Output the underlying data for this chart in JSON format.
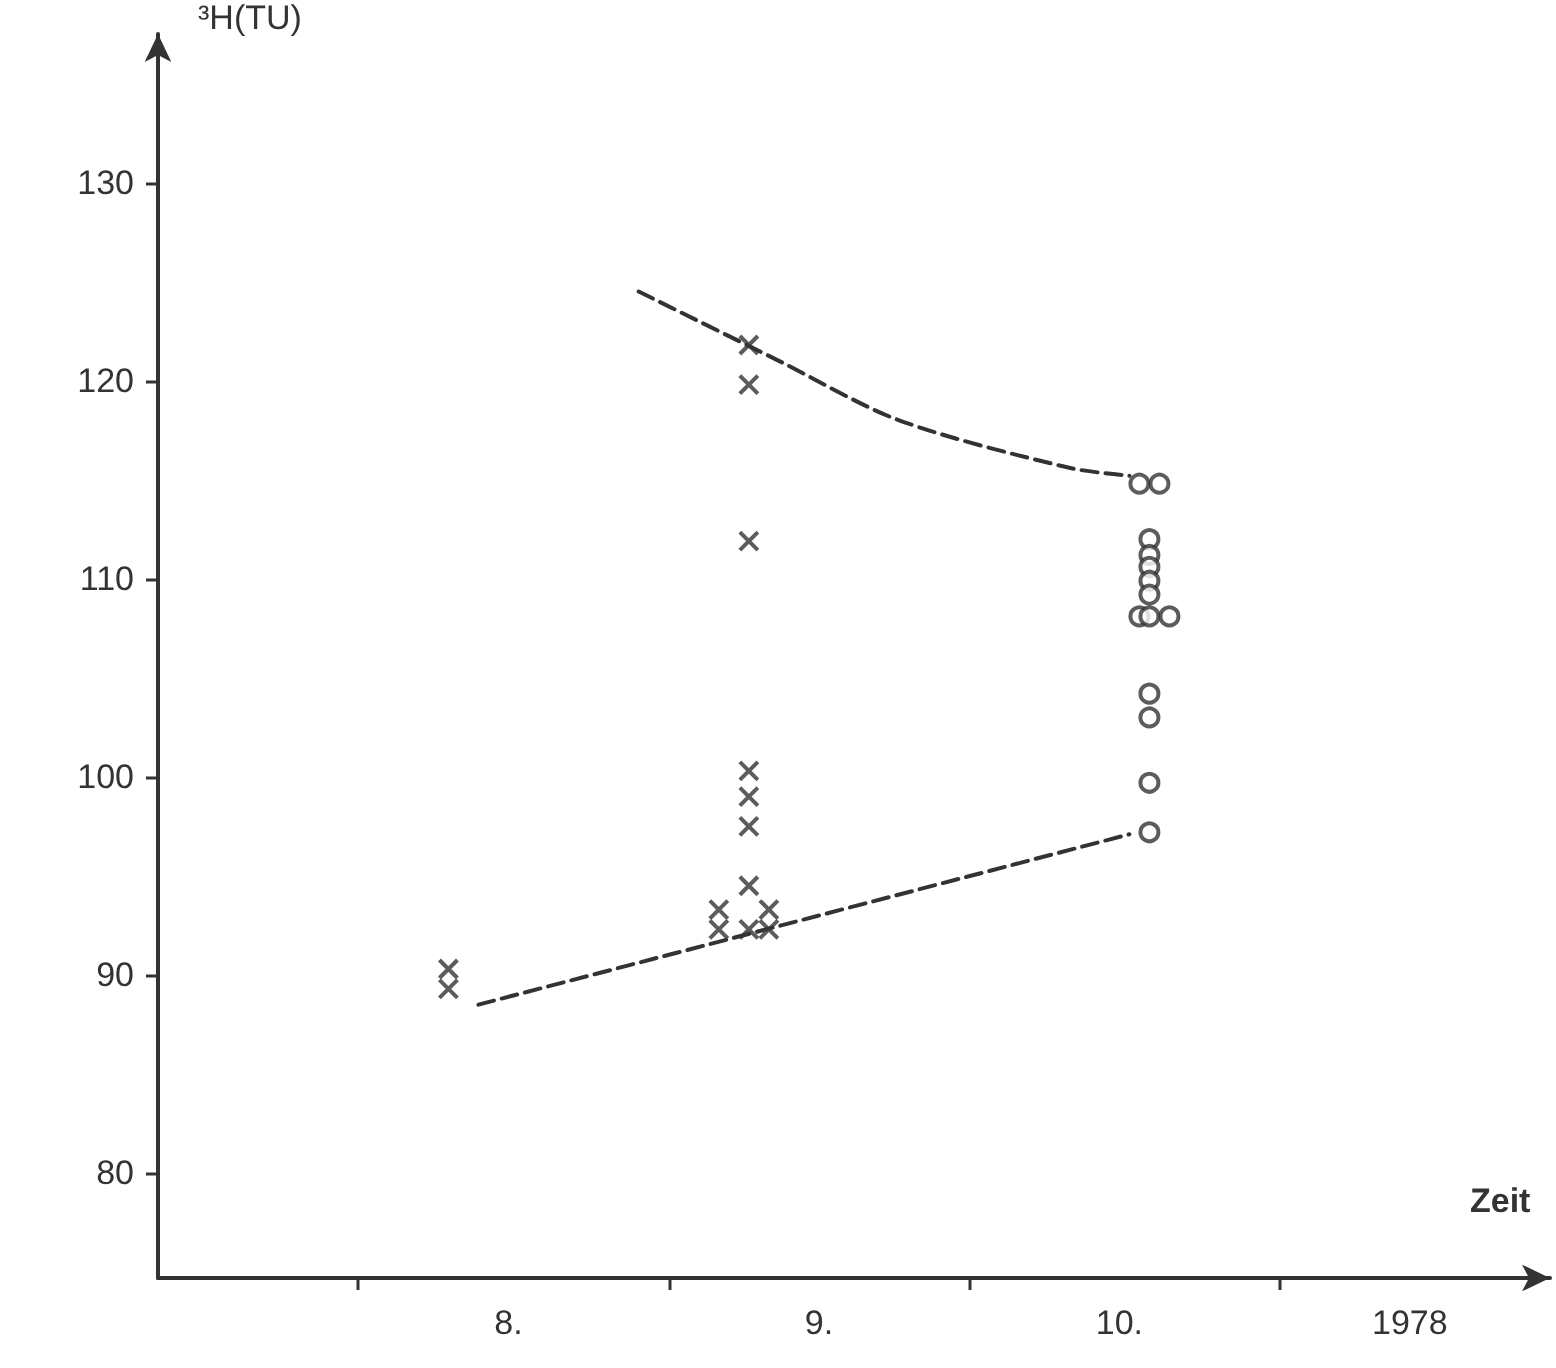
{
  "chart_data": {
    "type": "scatter",
    "xlabel": "Zeit",
    "ylabel": "³H(TU)",
    "xlim": [
      "1978-07-12",
      "1978-11-28"
    ],
    "ylim": [
      74.7,
      137.5
    ],
    "xticks": [
      {
        "value": "1978-08-01",
        "label": null
      },
      {
        "value": "1978-09-01",
        "label": null
      },
      {
        "value": "1978-10-01",
        "label": null
      },
      {
        "value": "1978-11-01",
        "label": null
      },
      {
        "value": "1978-08-16",
        "label": "8."
      },
      {
        "value": "1978-09-16",
        "label": "9."
      },
      {
        "value": "1978-10-16",
        "label": "10."
      },
      {
        "value": "1978-11-14",
        "label": "1978"
      }
    ],
    "yticks": [
      80,
      90,
      100,
      110,
      120,
      130
    ],
    "grid": false,
    "series": [
      {
        "marker": "cross",
        "color": "#333333",
        "x": [
          "1978-08-10",
          "1978-08-10",
          "1978-09-09",
          "1978-09-09",
          "1978-09-09",
          "1978-09-09",
          "1978-09-09",
          "1978-09-09",
          "1978-09-09",
          "1978-09-06",
          "1978-09-11",
          "1978-09-06",
          "1978-09-09",
          "1978-09-11"
        ],
        "values": [
          90.3,
          89.3,
          121.8,
          119.8,
          111.9,
          100.3,
          99,
          97.5,
          94.5,
          93.3,
          93.3,
          92.3,
          92.3,
          92.3
        ]
      },
      {
        "marker": "circle",
        "color": "#333333",
        "x": [
          "1978-10-18",
          "1978-10-20",
          "1978-10-19",
          "1978-10-19",
          "1978-10-19",
          "1978-10-19",
          "1978-10-19",
          "1978-10-18",
          "1978-10-19",
          "1978-10-21",
          "1978-10-19",
          "1978-10-19",
          "1978-10-19",
          "1978-10-19"
        ],
        "values": [
          114.8,
          114.8,
          112,
          111.2,
          110.6,
          109.9,
          109.2,
          108.1,
          108.1,
          108.1,
          104.2,
          103,
          99.7,
          97.2
        ]
      },
      {
        "type": "line",
        "marker": "none",
        "line_style": "dashed",
        "color": "#333333",
        "x": [
          "1978-08-13",
          "1978-10-17"
        ],
        "values": [
          88.5,
          97.1
        ]
      },
      {
        "type": "line",
        "marker": "none",
        "line_style": "dashed",
        "color": "#333333",
        "x": [
          "1978-08-29",
          "1978-09-12",
          "1978-09-24",
          "1978-10-11",
          "1978-10-17"
        ],
        "values": [
          124.5,
          121,
          118,
          115.6,
          115.2
        ]
      }
    ]
  }
}
